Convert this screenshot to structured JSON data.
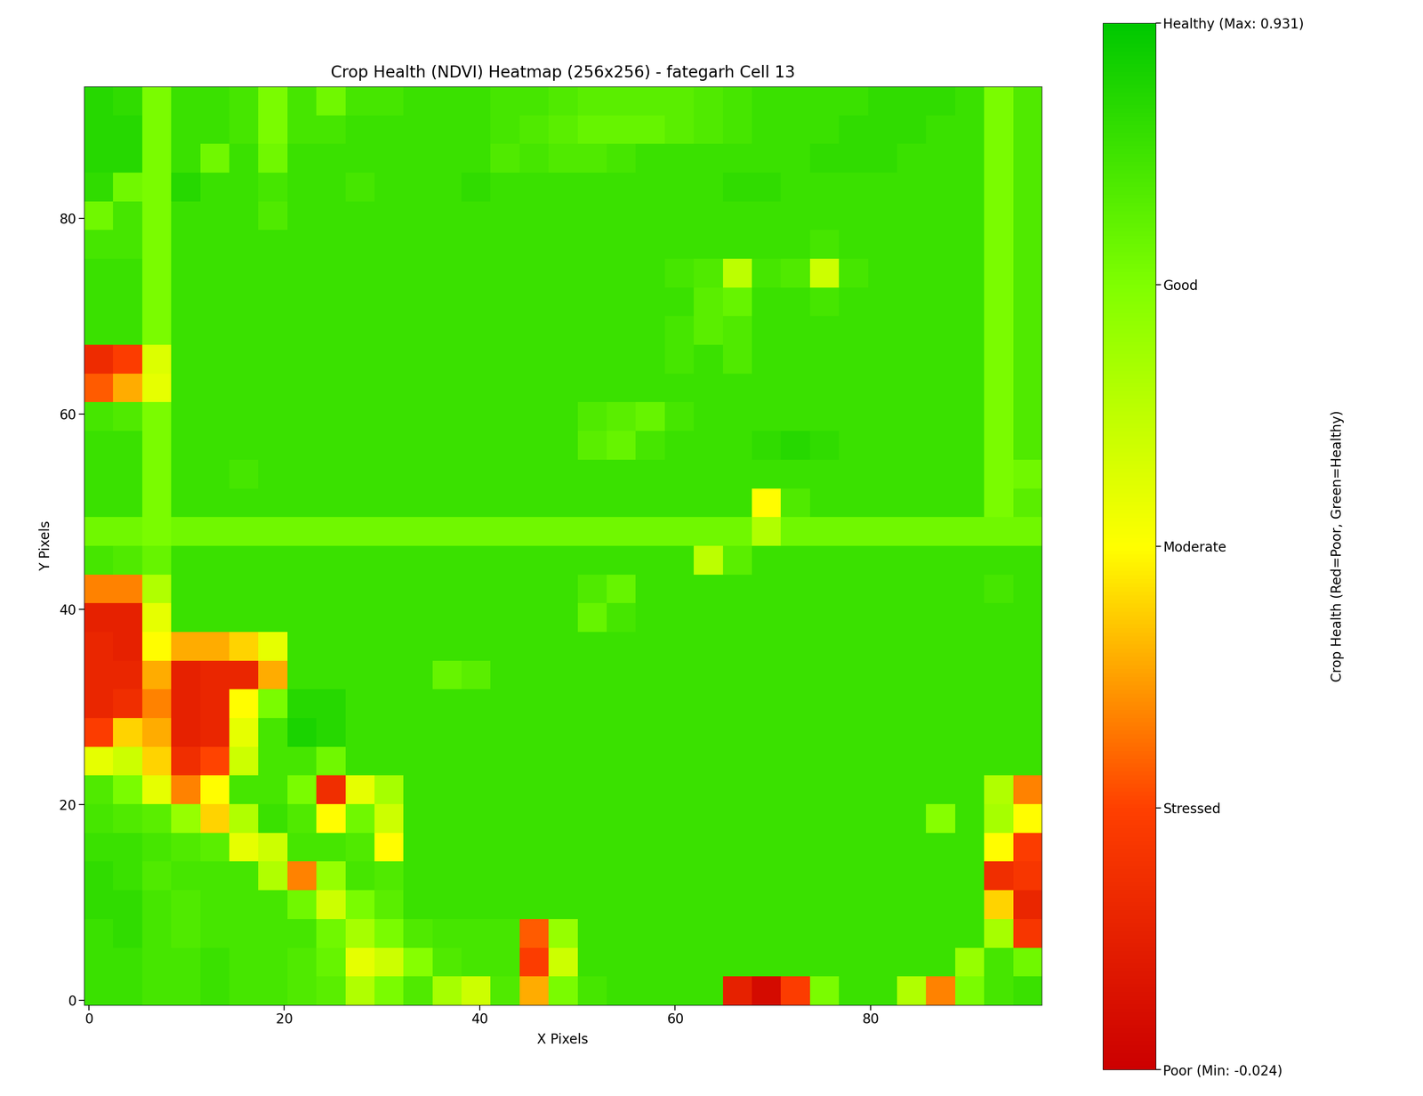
{
  "chart_data": {
    "type": "heatmap",
    "title": "Crop Health (NDVI) Heatmap (256x256) - fategarh Cell 13",
    "x_label": "X Pixels",
    "y_label": "Y Pixels",
    "xlim": [
      -0.5,
      97.5
    ],
    "ylim": [
      -0.5,
      93.5
    ],
    "xticks": [
      0,
      20,
      40,
      60,
      80
    ],
    "yticks": [
      0,
      20,
      40,
      60,
      80
    ],
    "colors": [
      "#cc0000",
      "#ff4000",
      "#ffff00",
      "#80ff00",
      "#00c800"
    ],
    "clim": [
      -0.024,
      0.931
    ],
    "cticks": [
      {
        "value": -0.024,
        "label": "Poor (Min: -0.024)"
      },
      {
        "value": 0.21475,
        "label": "Stressed"
      },
      {
        "value": 0.4535,
        "label": "Moderate"
      },
      {
        "value": 0.69225,
        "label": "Good"
      },
      {
        "value": 0.931,
        "label": "Healthy (Max: 0.931)"
      }
    ],
    "colorbar_label": "Crop Health (Red=Poor, Green=Healthy)",
    "cells": [
      [
        0.86,
        0.84,
        0.7,
        0.82,
        0.82,
        0.8,
        0.7,
        0.8,
        0.72,
        0.8,
        0.8,
        0.82,
        0.82,
        0.82,
        0.8,
        0.8,
        0.78,
        0.76,
        0.76,
        0.76,
        0.76,
        0.78,
        0.8,
        0.82,
        0.82,
        0.82,
        0.82,
        0.84,
        0.84,
        0.84,
        0.82,
        0.7,
        0.78
      ],
      [
        0.86,
        0.86,
        0.7,
        0.82,
        0.82,
        0.8,
        0.7,
        0.8,
        0.8,
        0.82,
        0.82,
        0.82,
        0.82,
        0.82,
        0.8,
        0.78,
        0.76,
        0.74,
        0.74,
        0.74,
        0.76,
        0.78,
        0.8,
        0.82,
        0.82,
        0.82,
        0.84,
        0.84,
        0.84,
        0.82,
        0.82,
        0.7,
        0.78
      ],
      [
        0.86,
        0.86,
        0.7,
        0.82,
        0.72,
        0.82,
        0.72,
        0.82,
        0.82,
        0.82,
        0.82,
        0.82,
        0.82,
        0.82,
        0.78,
        0.8,
        0.78,
        0.78,
        0.8,
        0.82,
        0.82,
        0.82,
        0.82,
        0.82,
        0.82,
        0.84,
        0.84,
        0.84,
        0.82,
        0.82,
        0.82,
        0.7,
        0.78
      ],
      [
        0.84,
        0.72,
        0.7,
        0.86,
        0.82,
        0.82,
        0.8,
        0.82,
        0.82,
        0.8,
        0.82,
        0.82,
        0.82,
        0.84,
        0.82,
        0.82,
        0.82,
        0.82,
        0.82,
        0.82,
        0.82,
        0.82,
        0.84,
        0.84,
        0.82,
        0.82,
        0.82,
        0.82,
        0.82,
        0.82,
        0.82,
        0.7,
        0.78
      ],
      [
        0.72,
        0.8,
        0.7,
        0.82,
        0.82,
        0.82,
        0.78,
        0.82,
        0.82,
        0.82,
        0.82,
        0.82,
        0.82,
        0.82,
        0.82,
        0.82,
        0.82,
        0.82,
        0.82,
        0.82,
        0.82,
        0.82,
        0.82,
        0.82,
        0.82,
        0.82,
        0.82,
        0.82,
        0.82,
        0.82,
        0.82,
        0.7,
        0.78
      ],
      [
        0.8,
        0.8,
        0.7,
        0.82,
        0.82,
        0.82,
        0.82,
        0.82,
        0.82,
        0.82,
        0.82,
        0.82,
        0.82,
        0.82,
        0.82,
        0.82,
        0.82,
        0.82,
        0.82,
        0.82,
        0.82,
        0.82,
        0.82,
        0.82,
        0.82,
        0.8,
        0.82,
        0.82,
        0.82,
        0.82,
        0.82,
        0.7,
        0.78
      ],
      [
        0.82,
        0.82,
        0.7,
        0.82,
        0.82,
        0.82,
        0.82,
        0.82,
        0.82,
        0.82,
        0.82,
        0.82,
        0.82,
        0.82,
        0.82,
        0.82,
        0.82,
        0.82,
        0.82,
        0.82,
        0.8,
        0.78,
        0.58,
        0.8,
        0.78,
        0.55,
        0.8,
        0.82,
        0.82,
        0.82,
        0.82,
        0.7,
        0.78
      ],
      [
        0.82,
        0.82,
        0.7,
        0.82,
        0.82,
        0.82,
        0.82,
        0.82,
        0.82,
        0.82,
        0.82,
        0.82,
        0.82,
        0.82,
        0.82,
        0.82,
        0.82,
        0.82,
        0.82,
        0.82,
        0.82,
        0.76,
        0.74,
        0.82,
        0.82,
        0.8,
        0.82,
        0.82,
        0.82,
        0.82,
        0.82,
        0.7,
        0.78
      ],
      [
        0.82,
        0.82,
        0.7,
        0.82,
        0.82,
        0.82,
        0.82,
        0.82,
        0.82,
        0.82,
        0.82,
        0.82,
        0.82,
        0.82,
        0.82,
        0.82,
        0.82,
        0.82,
        0.82,
        0.82,
        0.8,
        0.76,
        0.78,
        0.82,
        0.82,
        0.82,
        0.82,
        0.82,
        0.82,
        0.82,
        0.82,
        0.7,
        0.78
      ],
      [
        0.14,
        0.2,
        0.52,
        0.82,
        0.82,
        0.82,
        0.82,
        0.82,
        0.82,
        0.82,
        0.82,
        0.82,
        0.82,
        0.82,
        0.82,
        0.82,
        0.82,
        0.82,
        0.82,
        0.82,
        0.8,
        0.82,
        0.78,
        0.82,
        0.82,
        0.82,
        0.82,
        0.82,
        0.82,
        0.82,
        0.82,
        0.7,
        0.78
      ],
      [
        0.25,
        0.35,
        0.5,
        0.82,
        0.82,
        0.82,
        0.82,
        0.82,
        0.82,
        0.82,
        0.82,
        0.82,
        0.82,
        0.82,
        0.82,
        0.82,
        0.82,
        0.82,
        0.82,
        0.82,
        0.82,
        0.82,
        0.82,
        0.82,
        0.82,
        0.82,
        0.82,
        0.82,
        0.82,
        0.82,
        0.82,
        0.7,
        0.78
      ],
      [
        0.8,
        0.78,
        0.7,
        0.82,
        0.82,
        0.82,
        0.82,
        0.82,
        0.82,
        0.82,
        0.82,
        0.82,
        0.82,
        0.82,
        0.82,
        0.82,
        0.82,
        0.78,
        0.76,
        0.74,
        0.8,
        0.82,
        0.82,
        0.82,
        0.82,
        0.82,
        0.82,
        0.82,
        0.82,
        0.82,
        0.82,
        0.7,
        0.78
      ],
      [
        0.82,
        0.82,
        0.7,
        0.82,
        0.82,
        0.82,
        0.82,
        0.82,
        0.82,
        0.82,
        0.82,
        0.82,
        0.82,
        0.82,
        0.82,
        0.82,
        0.82,
        0.76,
        0.74,
        0.8,
        0.82,
        0.82,
        0.82,
        0.84,
        0.86,
        0.84,
        0.82,
        0.82,
        0.82,
        0.82,
        0.82,
        0.7,
        0.78
      ],
      [
        0.82,
        0.82,
        0.7,
        0.82,
        0.82,
        0.8,
        0.82,
        0.82,
        0.82,
        0.82,
        0.82,
        0.82,
        0.82,
        0.82,
        0.82,
        0.82,
        0.82,
        0.82,
        0.82,
        0.82,
        0.82,
        0.82,
        0.82,
        0.82,
        0.82,
        0.82,
        0.82,
        0.82,
        0.82,
        0.82,
        0.82,
        0.7,
        0.72
      ],
      [
        0.82,
        0.82,
        0.7,
        0.82,
        0.82,
        0.82,
        0.82,
        0.82,
        0.82,
        0.82,
        0.82,
        0.82,
        0.82,
        0.82,
        0.82,
        0.82,
        0.82,
        0.82,
        0.82,
        0.82,
        0.82,
        0.82,
        0.82,
        0.45,
        0.78,
        0.82,
        0.82,
        0.82,
        0.82,
        0.82,
        0.82,
        0.7,
        0.76
      ],
      [
        0.72,
        0.72,
        0.7,
        0.72,
        0.72,
        0.72,
        0.72,
        0.72,
        0.72,
        0.72,
        0.72,
        0.72,
        0.72,
        0.72,
        0.72,
        0.72,
        0.72,
        0.72,
        0.72,
        0.72,
        0.72,
        0.72,
        0.72,
        0.6,
        0.72,
        0.72,
        0.72,
        0.72,
        0.72,
        0.72,
        0.72,
        0.72,
        0.72
      ],
      [
        0.8,
        0.78,
        0.74,
        0.82,
        0.82,
        0.82,
        0.82,
        0.82,
        0.82,
        0.82,
        0.82,
        0.82,
        0.82,
        0.82,
        0.82,
        0.82,
        0.82,
        0.82,
        0.82,
        0.82,
        0.82,
        0.58,
        0.76,
        0.82,
        0.82,
        0.82,
        0.82,
        0.82,
        0.82,
        0.82,
        0.82,
        0.82,
        0.82
      ],
      [
        0.3,
        0.3,
        0.6,
        0.82,
        0.82,
        0.82,
        0.82,
        0.82,
        0.82,
        0.82,
        0.82,
        0.82,
        0.82,
        0.82,
        0.82,
        0.82,
        0.82,
        0.78,
        0.74,
        0.82,
        0.82,
        0.82,
        0.82,
        0.82,
        0.82,
        0.82,
        0.82,
        0.82,
        0.82,
        0.82,
        0.82,
        0.8,
        0.82
      ],
      [
        0.1,
        0.1,
        0.5,
        0.82,
        0.82,
        0.82,
        0.82,
        0.82,
        0.82,
        0.82,
        0.82,
        0.82,
        0.82,
        0.82,
        0.82,
        0.82,
        0.82,
        0.74,
        0.8,
        0.82,
        0.82,
        0.82,
        0.82,
        0.82,
        0.82,
        0.82,
        0.82,
        0.82,
        0.82,
        0.82,
        0.82,
        0.82,
        0.82
      ],
      [
        0.12,
        0.1,
        0.45,
        0.35,
        0.35,
        0.4,
        0.5,
        0.82,
        0.82,
        0.82,
        0.82,
        0.82,
        0.82,
        0.82,
        0.82,
        0.82,
        0.82,
        0.82,
        0.82,
        0.82,
        0.82,
        0.82,
        0.82,
        0.82,
        0.82,
        0.82,
        0.82,
        0.82,
        0.82,
        0.82,
        0.82,
        0.82,
        0.82
      ],
      [
        0.12,
        0.12,
        0.35,
        0.1,
        0.12,
        0.12,
        0.35,
        0.82,
        0.82,
        0.82,
        0.82,
        0.82,
        0.74,
        0.76,
        0.82,
        0.82,
        0.82,
        0.82,
        0.82,
        0.82,
        0.82,
        0.82,
        0.82,
        0.82,
        0.82,
        0.82,
        0.82,
        0.82,
        0.82,
        0.82,
        0.82,
        0.82,
        0.82
      ],
      [
        0.12,
        0.15,
        0.3,
        0.1,
        0.12,
        0.45,
        0.7,
        0.86,
        0.86,
        0.82,
        0.82,
        0.82,
        0.82,
        0.82,
        0.82,
        0.82,
        0.82,
        0.82,
        0.82,
        0.82,
        0.82,
        0.82,
        0.82,
        0.82,
        0.82,
        0.82,
        0.82,
        0.82,
        0.82,
        0.82,
        0.82,
        0.82,
        0.82
      ],
      [
        0.2,
        0.4,
        0.35,
        0.1,
        0.12,
        0.5,
        0.8,
        0.88,
        0.86,
        0.82,
        0.82,
        0.82,
        0.82,
        0.82,
        0.82,
        0.82,
        0.82,
        0.82,
        0.82,
        0.82,
        0.82,
        0.82,
        0.82,
        0.82,
        0.82,
        0.82,
        0.82,
        0.82,
        0.82,
        0.82,
        0.82,
        0.82,
        0.82
      ],
      [
        0.5,
        0.55,
        0.4,
        0.15,
        0.22,
        0.55,
        0.8,
        0.8,
        0.72,
        0.82,
        0.82,
        0.82,
        0.82,
        0.82,
        0.82,
        0.82,
        0.82,
        0.82,
        0.82,
        0.82,
        0.82,
        0.82,
        0.82,
        0.82,
        0.82,
        0.82,
        0.82,
        0.82,
        0.82,
        0.82,
        0.82,
        0.82,
        0.82
      ],
      [
        0.78,
        0.7,
        0.5,
        0.3,
        0.45,
        0.8,
        0.8,
        0.7,
        0.15,
        0.5,
        0.62,
        0.82,
        0.82,
        0.82,
        0.82,
        0.82,
        0.82,
        0.82,
        0.82,
        0.82,
        0.82,
        0.82,
        0.82,
        0.82,
        0.82,
        0.82,
        0.82,
        0.82,
        0.82,
        0.82,
        0.82,
        0.6,
        0.3
      ],
      [
        0.8,
        0.78,
        0.76,
        0.65,
        0.4,
        0.6,
        0.82,
        0.78,
        0.45,
        0.72,
        0.55,
        0.82,
        0.82,
        0.82,
        0.82,
        0.82,
        0.82,
        0.82,
        0.82,
        0.82,
        0.82,
        0.82,
        0.82,
        0.82,
        0.82,
        0.82,
        0.82,
        0.82,
        0.82,
        0.68,
        0.82,
        0.62,
        0.45
      ],
      [
        0.82,
        0.82,
        0.8,
        0.78,
        0.76,
        0.5,
        0.55,
        0.8,
        0.8,
        0.78,
        0.45,
        0.82,
        0.82,
        0.82,
        0.82,
        0.82,
        0.82,
        0.82,
        0.82,
        0.82,
        0.82,
        0.82,
        0.82,
        0.82,
        0.82,
        0.82,
        0.82,
        0.82,
        0.82,
        0.82,
        0.82,
        0.45,
        0.2
      ],
      [
        0.84,
        0.82,
        0.78,
        0.8,
        0.8,
        0.8,
        0.6,
        0.3,
        0.65,
        0.8,
        0.78,
        0.82,
        0.82,
        0.82,
        0.82,
        0.82,
        0.82,
        0.82,
        0.82,
        0.82,
        0.82,
        0.82,
        0.82,
        0.82,
        0.82,
        0.82,
        0.82,
        0.82,
        0.82,
        0.82,
        0.82,
        0.15,
        0.18
      ],
      [
        0.84,
        0.84,
        0.8,
        0.78,
        0.8,
        0.8,
        0.8,
        0.72,
        0.55,
        0.7,
        0.76,
        0.82,
        0.82,
        0.82,
        0.82,
        0.82,
        0.82,
        0.82,
        0.82,
        0.82,
        0.82,
        0.82,
        0.82,
        0.82,
        0.82,
        0.82,
        0.82,
        0.82,
        0.82,
        0.82,
        0.82,
        0.4,
        0.12
      ],
      [
        0.82,
        0.84,
        0.8,
        0.78,
        0.8,
        0.8,
        0.8,
        0.8,
        0.72,
        0.62,
        0.7,
        0.78,
        0.8,
        0.8,
        0.8,
        0.25,
        0.65,
        0.82,
        0.82,
        0.82,
        0.82,
        0.82,
        0.82,
        0.82,
        0.82,
        0.82,
        0.82,
        0.82,
        0.82,
        0.82,
        0.82,
        0.62,
        0.18
      ],
      [
        0.82,
        0.82,
        0.8,
        0.8,
        0.82,
        0.8,
        0.8,
        0.78,
        0.74,
        0.5,
        0.55,
        0.68,
        0.78,
        0.8,
        0.8,
        0.2,
        0.55,
        0.82,
        0.82,
        0.82,
        0.82,
        0.82,
        0.82,
        0.82,
        0.82,
        0.82,
        0.82,
        0.82,
        0.82,
        0.82,
        0.65,
        0.8,
        0.72
      ],
      [
        0.82,
        0.82,
        0.8,
        0.8,
        0.82,
        0.8,
        0.8,
        0.78,
        0.76,
        0.6,
        0.7,
        0.78,
        0.62,
        0.55,
        0.78,
        0.35,
        0.7,
        0.8,
        0.82,
        0.82,
        0.82,
        0.82,
        0.1,
        0.02,
        0.2,
        0.7,
        0.82,
        0.82,
        0.6,
        0.3,
        0.7,
        0.8,
        0.82
      ]
    ]
  }
}
